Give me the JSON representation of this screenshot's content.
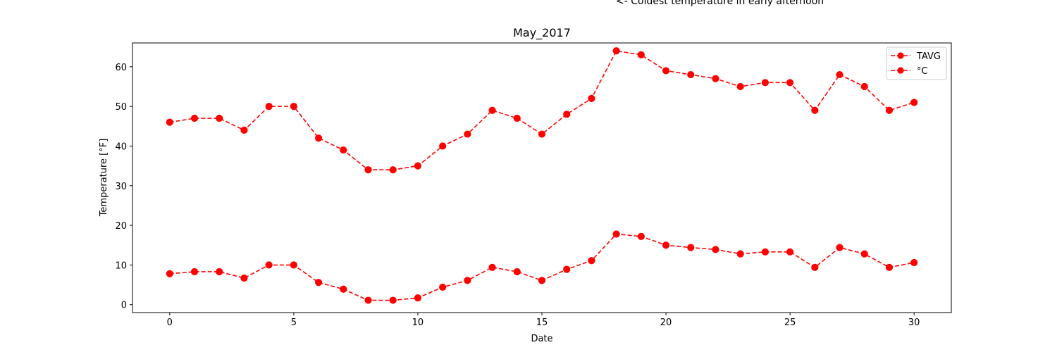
{
  "chart_data": {
    "type": "line",
    "title": "May_2017",
    "xlabel": "Date",
    "ylabel": "Temperature [°F]",
    "annotation": "<- Coldest temperature in early afternoon",
    "xlim": [
      -1.5,
      31.5
    ],
    "ylim": [
      -2,
      66
    ],
    "xticks": [
      0,
      5,
      10,
      15,
      20,
      25,
      30
    ],
    "yticks": [
      0,
      10,
      20,
      30,
      40,
      50,
      60
    ],
    "legend_position": "top-right",
    "x": [
      0,
      1,
      2,
      3,
      4,
      5,
      6,
      7,
      8,
      9,
      10,
      11,
      12,
      13,
      14,
      15,
      16,
      17,
      18,
      19,
      20,
      21,
      22,
      23,
      24,
      25,
      26,
      27,
      28,
      29,
      30
    ],
    "series": [
      {
        "name": "TAVG",
        "color": "#ff0000",
        "style": "dashed-circle",
        "values": [
          46,
          47,
          47,
          44,
          50,
          50,
          42,
          39,
          34,
          34,
          35,
          40,
          43,
          49,
          47,
          43,
          48,
          52,
          64,
          63,
          59,
          58,
          57,
          55,
          56,
          56,
          49,
          58,
          55,
          49,
          51
        ]
      },
      {
        "name": "°C",
        "color": "#ff0000",
        "style": "dashed-circle",
        "values": [
          7.8,
          8.3,
          8.3,
          6.7,
          10,
          10,
          5.6,
          3.9,
          1.1,
          1.1,
          1.7,
          4.4,
          6.1,
          9.4,
          8.3,
          6.1,
          8.9,
          11.1,
          17.8,
          17.2,
          15,
          14.4,
          13.9,
          12.8,
          13.3,
          13.3,
          9.4,
          14.4,
          12.8,
          9.4,
          10.6
        ]
      }
    ]
  }
}
